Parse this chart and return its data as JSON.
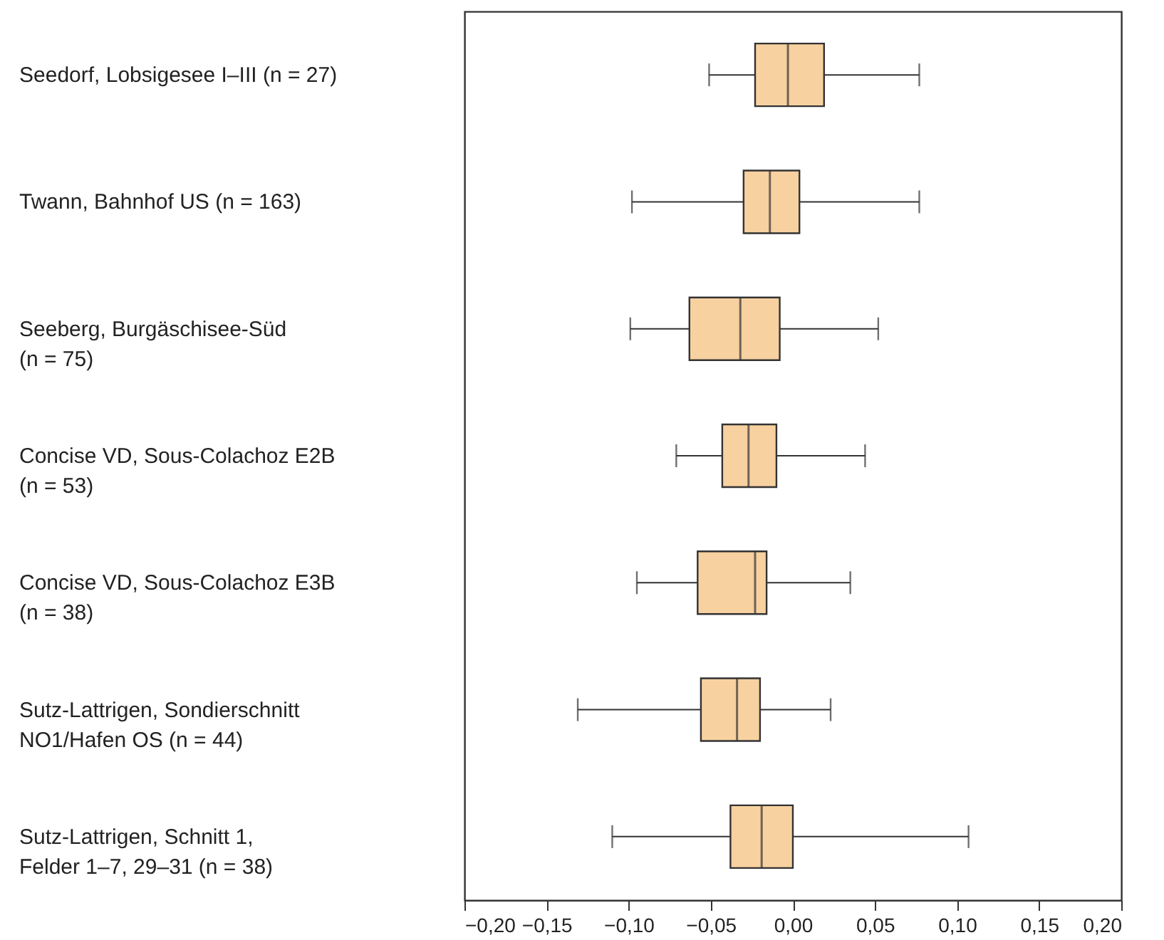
{
  "chart_data": {
    "type": "box",
    "orientation": "horizontal",
    "categories": [
      "Seedorf, Lobsigesee I–III (n = 27)",
      "Twann, Bahnhof US (n = 163)",
      "Seeberg, Burgäschisee-Süd\n(n = 75)",
      "Concise VD, Sous-Colachoz E2B\n(n = 53)",
      "Concise VD, Sous-Colachoz E3B\n(n = 38)",
      "Sutz-Lattrigen, Sondierschnitt\nNO1/Hafen OS (n = 44)",
      "Sutz-Lattrigen, Schnitt 1,\nFelder 1–7, 29–31 (n = 38)"
    ],
    "series": [
      {
        "color": "#f8d1a0",
        "boxes": [
          {
            "low": -0.051,
            "q1": -0.023,
            "median": -0.003,
            "q3": 0.019,
            "high": 0.077
          },
          {
            "low": -0.098,
            "q1": -0.03,
            "median": -0.014,
            "q3": 0.004,
            "high": 0.077
          },
          {
            "low": -0.099,
            "q1": -0.063,
            "median": -0.032,
            "q3": -0.008,
            "high": 0.052
          },
          {
            "low": -0.071,
            "q1": -0.043,
            "median": -0.027,
            "q3": -0.01,
            "high": 0.044
          },
          {
            "low": -0.095,
            "q1": -0.058,
            "median": -0.023,
            "q3": -0.016,
            "high": 0.035
          },
          {
            "low": -0.131,
            "q1": -0.056,
            "median": -0.034,
            "q3": -0.02,
            "high": 0.023
          },
          {
            "low": -0.11,
            "q1": -0.038,
            "median": -0.019,
            "q3": 0.0,
            "high": 0.107
          }
        ]
      }
    ],
    "xlim": [
      -0.2,
      0.2
    ],
    "xticks": [
      {
        "value": -0.2,
        "label": "−0,20"
      },
      {
        "value": -0.15,
        "label": "−0,15"
      },
      {
        "value": -0.1,
        "label": "−0,10"
      },
      {
        "value": -0.05,
        "label": "−0,05"
      },
      {
        "value": 0,
        "label": "0,00"
      },
      {
        "value": 0.05,
        "label": "0,05"
      },
      {
        "value": 0.1,
        "label": "0,10"
      },
      {
        "value": 0.15,
        "label": "0,15"
      },
      {
        "value": 0.2,
        "label": "0,20"
      }
    ]
  }
}
